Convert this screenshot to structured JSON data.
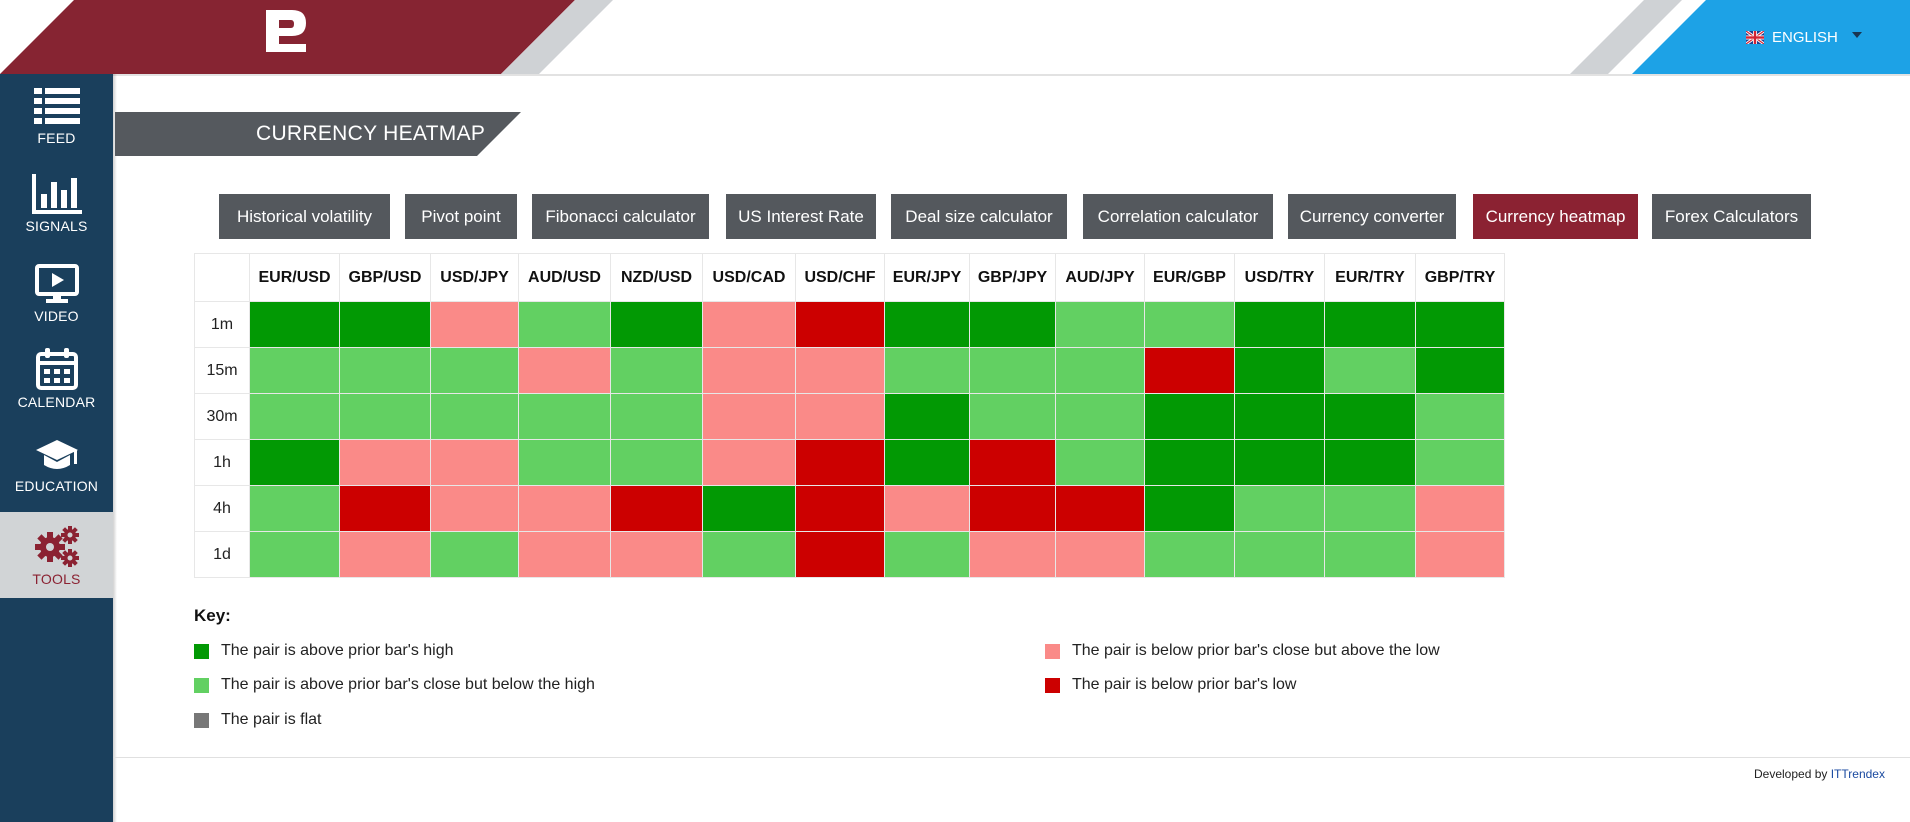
{
  "header": {
    "language": "ENGLISH"
  },
  "sidebar": {
    "items": [
      {
        "label": "FEED",
        "icon": "list-icon"
      },
      {
        "label": "SIGNALS",
        "icon": "bar-chart-icon"
      },
      {
        "label": "VIDEO",
        "icon": "monitor-play-icon"
      },
      {
        "label": "CALENDAR",
        "icon": "calendar-icon"
      },
      {
        "label": "EDUCATION",
        "icon": "graduation-cap-icon"
      },
      {
        "label": "TOOLS",
        "icon": "gears-icon",
        "active": true
      }
    ]
  },
  "page": {
    "title": "CURRENCY HEATMAP"
  },
  "tabs": [
    {
      "label": "Historical volatility"
    },
    {
      "label": "Pivot point"
    },
    {
      "label": "Fibonacci calculator"
    },
    {
      "label": "US Interest Rate"
    },
    {
      "label": "Deal size calculator"
    },
    {
      "label": "Correlation calculator"
    },
    {
      "label": "Currency converter"
    },
    {
      "label": "Currency heatmap",
      "active": true
    },
    {
      "label": "Forex Calculators"
    }
  ],
  "chart_data": {
    "type": "heatmap",
    "columns": [
      "EUR/USD",
      "GBP/USD",
      "USD/JPY",
      "AUD/USD",
      "NZD/USD",
      "USD/CAD",
      "USD/CHF",
      "EUR/JPY",
      "GBP/JPY",
      "AUD/JPY",
      "EUR/GBP",
      "USD/TRY",
      "EUR/TRY",
      "GBP/TRY"
    ],
    "rows": [
      "1m",
      "15m",
      "30m",
      "1h",
      "4h",
      "1d"
    ],
    "values": [
      [
        1,
        1,
        3,
        2,
        1,
        3,
        4,
        1,
        1,
        2,
        2,
        1,
        1,
        1
      ],
      [
        2,
        2,
        2,
        3,
        2,
        3,
        3,
        2,
        2,
        2,
        4,
        1,
        2,
        1
      ],
      [
        2,
        2,
        2,
        2,
        2,
        3,
        3,
        1,
        2,
        2,
        1,
        1,
        1,
        2
      ],
      [
        1,
        3,
        3,
        2,
        2,
        3,
        4,
        1,
        4,
        2,
        1,
        1,
        1,
        2
      ],
      [
        2,
        4,
        3,
        3,
        4,
        1,
        4,
        3,
        4,
        4,
        1,
        2,
        2,
        3
      ],
      [
        2,
        3,
        2,
        3,
        3,
        2,
        4,
        2,
        3,
        3,
        2,
        2,
        2,
        3
      ]
    ],
    "colors": {
      "1": "#029904",
      "2": "#62d062",
      "3": "#fa8a88",
      "4": "#cc0000",
      "5": "#777777"
    }
  },
  "key": {
    "title": "Key:",
    "items": [
      {
        "level": 1,
        "color": "#029904",
        "text": "The pair is above prior bar's high"
      },
      {
        "level": 2,
        "color": "#62d062",
        "text": "The pair is above prior bar's close but below the high"
      },
      {
        "level": 5,
        "color": "#777777",
        "text": "The pair is flat"
      },
      {
        "level": 3,
        "color": "#fa8a88",
        "text": "The pair is below prior bar's close but above the low"
      },
      {
        "level": 4,
        "color": "#cc0000",
        "text": "The pair is below prior bar's low"
      }
    ]
  },
  "footer": {
    "prefix": "Developed by ",
    "link": "ITTrendex"
  }
}
